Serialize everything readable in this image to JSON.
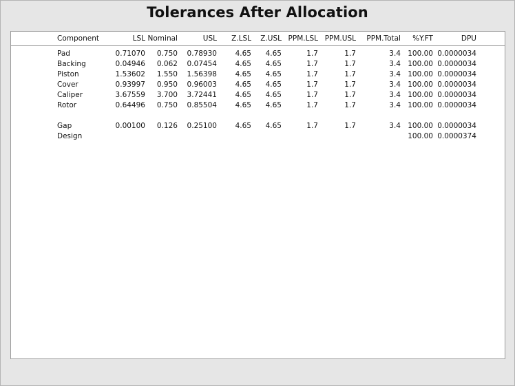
{
  "title": "Tolerances After Allocation",
  "columns": [
    "Component",
    "LSL",
    "Nominal",
    "USL",
    "Z.LSL",
    "Z.USL",
    "PPM.LSL",
    "PPM.USL",
    "PPM.Total",
    "%Y.FT",
    "DPU"
  ],
  "components": [
    [
      "Pad",
      "0.71070",
      "0.750",
      "0.78930",
      "4.65",
      "4.65",
      "1.7",
      "1.7",
      "3.4",
      "100.00",
      "0.0000034"
    ],
    [
      "Backing",
      "0.04946",
      "0.062",
      "0.07454",
      "4.65",
      "4.65",
      "1.7",
      "1.7",
      "3.4",
      "100.00",
      "0.0000034"
    ],
    [
      "Piston",
      "1.53602",
      "1.550",
      "1.56398",
      "4.65",
      "4.65",
      "1.7",
      "1.7",
      "3.4",
      "100.00",
      "0.0000034"
    ],
    [
      "Cover",
      "0.93997",
      "0.950",
      "0.96003",
      "4.65",
      "4.65",
      "1.7",
      "1.7",
      "3.4",
      "100.00",
      "0.0000034"
    ],
    [
      "Caliper",
      "3.67559",
      "3.700",
      "3.72441",
      "4.65",
      "4.65",
      "1.7",
      "1.7",
      "3.4",
      "100.00",
      "0.0000034"
    ],
    [
      "Rotor",
      "0.64496",
      "0.750",
      "0.85504",
      "4.65",
      "4.65",
      "1.7",
      "1.7",
      "3.4",
      "100.00",
      "0.0000034"
    ]
  ],
  "summary": [
    [
      "Gap",
      "0.00100",
      "0.126",
      "0.25100",
      "4.65",
      "4.65",
      "1.7",
      "1.7",
      "3.4",
      "100.00",
      "0.0000034"
    ],
    [
      "Design",
      "",
      "",
      "",
      "",
      "",
      "",
      "",
      "",
      "100.00",
      "0.0000374"
    ]
  ]
}
